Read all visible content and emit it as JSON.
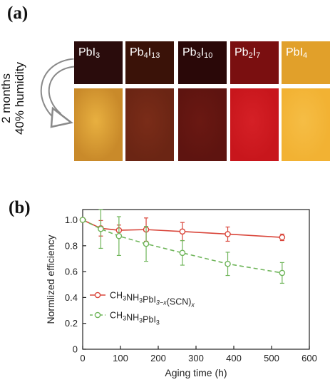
{
  "panel_a": {
    "label": "(a)",
    "side_note_line1": "2 months",
    "side_note_line2": "40% humidity",
    "films": [
      {
        "base": "PbI",
        "sub": "3",
        "tail": "",
        "sub2": "",
        "before": "#2a0c0c",
        "after": "#c98a2a",
        "after_spot": "#e8b040"
      },
      {
        "base": "Pb",
        "sub": "4",
        "tail": "I",
        "sub2": "13",
        "before": "#3a1208",
        "after": "#6b2514",
        "after_spot": "#7a2c18"
      },
      {
        "base": "Pb",
        "sub": "3",
        "tail": "I",
        "sub2": "10",
        "before": "#2a0808",
        "after": "#5e1410",
        "after_spot": "#6a1812"
      },
      {
        "base": "Pb",
        "sub": "2",
        "tail": "I",
        "sub2": "7",
        "before": "#7a0f10",
        "after": "#c8161c",
        "after_spot": "#d52026"
      },
      {
        "base": "PbI",
        "sub": "4",
        "tail": "",
        "sub2": "",
        "before": "#e1a02a",
        "after": "#f2b233",
        "after_spot": "#f5bd45"
      }
    ]
  },
  "panel_b": {
    "label": "(b)"
  },
  "chart_data": {
    "type": "line",
    "xlabel": "Aging time (h)",
    "ylabel": "Normlized efficiency",
    "xlim": [
      0,
      600
    ],
    "ylim": [
      0,
      1.08
    ],
    "xticks": [
      0,
      100,
      200,
      300,
      400,
      500,
      600
    ],
    "yticks": [
      0,
      0.2,
      0.4,
      0.6,
      0.8,
      1.0
    ],
    "series": [
      {
        "name": "CH3NH3PbI3-x(SCN)x",
        "legend_parts": [
          "CH",
          "3",
          "NH",
          "3",
          "PbI",
          "3−x",
          "(SCN)",
          "x"
        ],
        "color": "#d9453a",
        "dashed": false,
        "x": [
          0,
          48,
          96,
          168,
          264,
          384,
          528
        ],
        "y": [
          1.0,
          0.935,
          0.92,
          0.925,
          0.91,
          0.89,
          0.865
        ],
        "err": [
          0.0,
          0.06,
          0.04,
          0.09,
          0.07,
          0.055,
          0.025
        ]
      },
      {
        "name": "CH3NH3PbI3",
        "legend_parts": [
          "CH",
          "3",
          "NH",
          "3",
          "PbI",
          "3",
          "",
          ""
        ],
        "color": "#6fb55a",
        "dashed": true,
        "x": [
          0,
          48,
          96,
          168,
          264,
          384,
          528
        ],
        "y": [
          1.0,
          0.93,
          0.875,
          0.815,
          0.745,
          0.66,
          0.59
        ],
        "err": [
          0.0,
          0.15,
          0.15,
          0.135,
          0.095,
          0.09,
          0.08
        ]
      }
    ]
  }
}
